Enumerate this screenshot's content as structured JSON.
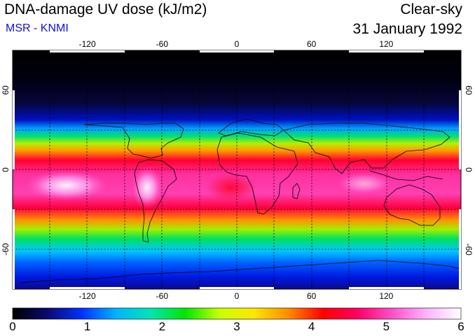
{
  "header": {
    "title": "DNA-damage UV dose (kJ/m2)",
    "subtitle": "MSR - KNMI",
    "condition": "Clear-sky",
    "date": "31 January 1992"
  },
  "map": {
    "lon_ticks": [
      -120,
      -60,
      0,
      60,
      120
    ],
    "lat_ticks": [
      60,
      0,
      -60
    ],
    "lon_range": [
      -180,
      180
    ],
    "lat_range": [
      -90,
      90
    ]
  },
  "colorbar": {
    "labels": [
      "0",
      "1",
      "2",
      "3",
      "4",
      "5",
      "6"
    ],
    "min": 0,
    "max": 6,
    "colors": [
      "#000000",
      "#0a0a6e",
      "#0030ff",
      "#00b4ff",
      "#00e6b4",
      "#00e600",
      "#c8ff00",
      "#ffe600",
      "#ff8c00",
      "#ff0000",
      "#ff0064",
      "#ff50c8",
      "#ffb4ff",
      "#ffffff"
    ]
  }
}
